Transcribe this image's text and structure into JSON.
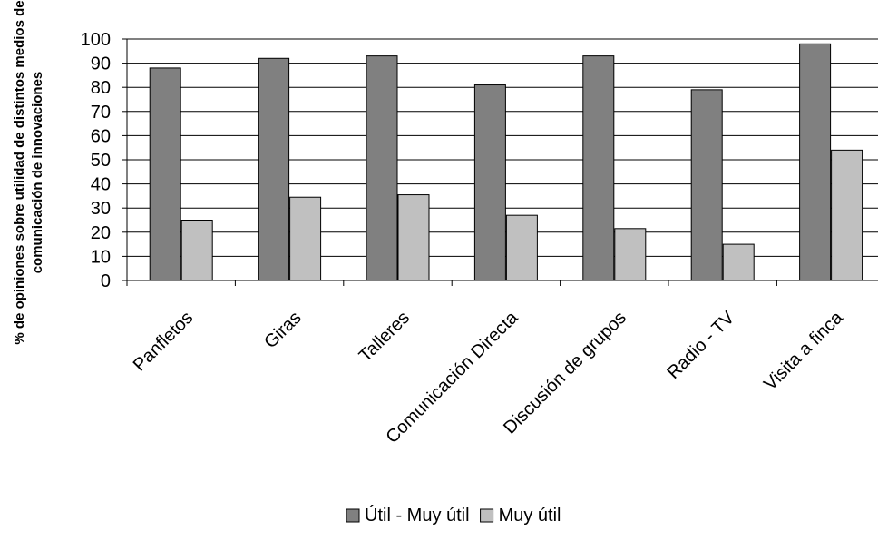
{
  "chart_data": {
    "type": "bar",
    "title": "",
    "ylabel_lines": [
      "% de opiniones sobre utilidad de distintos medios de",
      "comunicación de innovaciones"
    ],
    "xlabel": "",
    "categories": [
      "Panfletos",
      "Giras",
      "Talleres",
      "Comunicación Directa",
      "Discusión de grupos",
      "Radio - TV",
      "Visita a finca"
    ],
    "series": [
      {
        "name": "Útil - Muy útil",
        "values": [
          88,
          92,
          93,
          81,
          93,
          79,
          98
        ],
        "color": "#808080"
      },
      {
        "name": "Muy útil",
        "values": [
          25,
          34.5,
          35.5,
          27,
          21.5,
          15,
          54
        ],
        "color": "#c0c0c0"
      }
    ],
    "ylim": [
      0,
      100
    ],
    "yticks": [
      0,
      10,
      20,
      30,
      40,
      50,
      60,
      70,
      80,
      90,
      100
    ],
    "grid": true,
    "legend_position": "bottom"
  }
}
